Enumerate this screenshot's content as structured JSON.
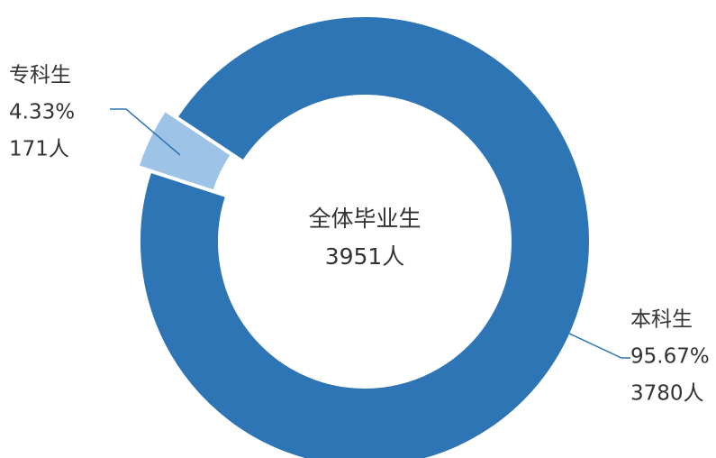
{
  "chart_data": {
    "type": "donut",
    "categories": [
      "专科生",
      "本科生"
    ],
    "values": [
      4.33,
      95.67
    ],
    "value_labels": [
      "4.33%",
      "95.67%"
    ],
    "count_labels": [
      "171人",
      "3780人"
    ],
    "colors": [
      "#9dc3e6",
      "#2e75b6"
    ],
    "center_title": "全体毕业生",
    "center_label": "3951人"
  }
}
